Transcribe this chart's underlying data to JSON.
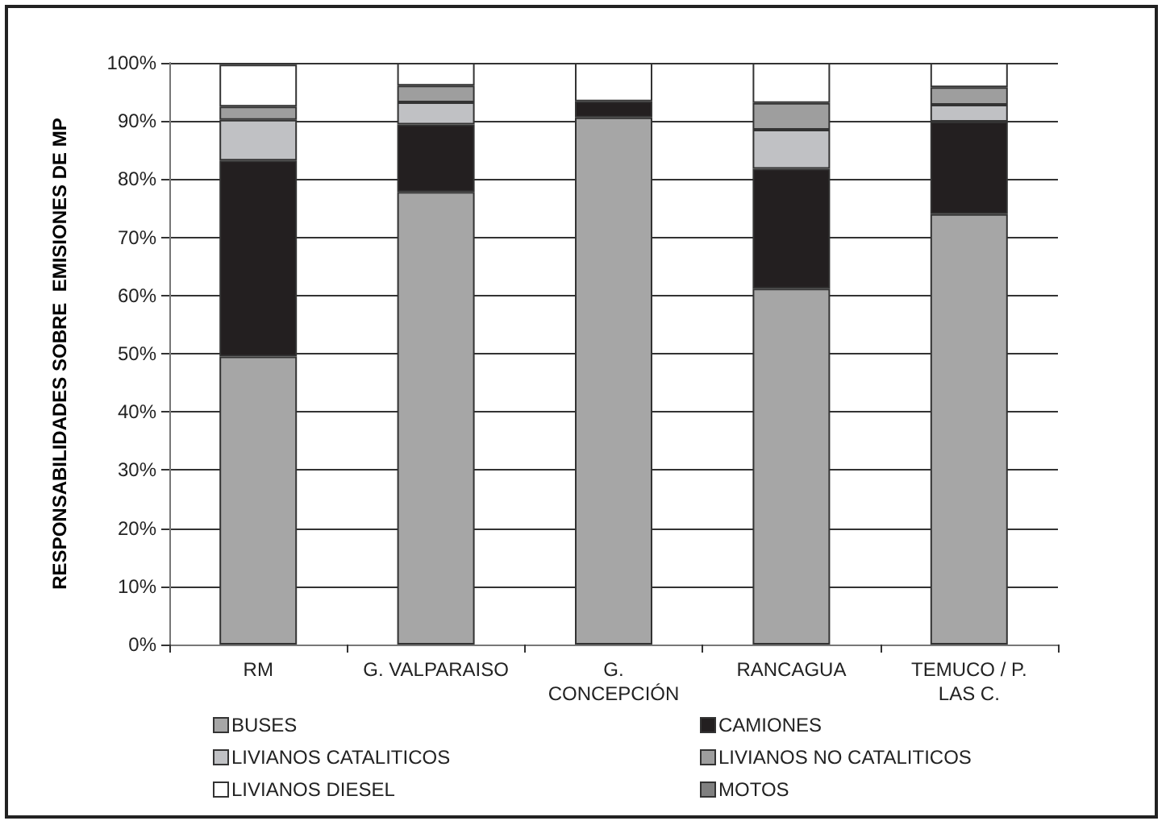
{
  "chart_data": {
    "type": "bar",
    "stacked": true,
    "ylabel": "RESPONSABILIDADES SOBRE  EMISIONES DE MP",
    "categories": [
      "RM",
      "G. VALPARAISO",
      "G.\nCONCEPCIÓN",
      "RANCAGUA",
      "TEMUCO / P.\nLAS C."
    ],
    "series": [
      {
        "name": "BUSES",
        "color": "#a6a6a6",
        "values": [
          49.5,
          77.8,
          90.6,
          61.2,
          74.0
        ]
      },
      {
        "name": "CAMIONES",
        "color": "#231f20",
        "values": [
          33.7,
          11.6,
          2.8,
          20.6,
          15.9
        ]
      },
      {
        "name": "LIVIANOS CATALITICOS",
        "color": "#c0c1c4",
        "values": [
          7.0,
          3.8,
          0,
          6.7,
          2.9
        ]
      },
      {
        "name": "LIVIANOS NO CATALITICOS",
        "color": "#9e9e9e",
        "values": [
          2.3,
          2.9,
          0,
          4.6,
          3.0
        ]
      },
      {
        "name": "LIVIANOS DIESEL",
        "color": "#ffffff",
        "values": [
          7.2,
          3.9,
          6.6,
          6.9,
          4.2
        ]
      },
      {
        "name": "MOTOS",
        "color": "#808080",
        "values": [
          0.3,
          0,
          0,
          0,
          0
        ]
      }
    ],
    "ylim": [
      0,
      100
    ],
    "yticks": [
      {
        "value": 0,
        "label": "0%"
      },
      {
        "value": 10,
        "label": "10%"
      },
      {
        "value": 20,
        "label": "20%"
      },
      {
        "value": 30,
        "label": "30%"
      },
      {
        "value": 40,
        "label": "40%"
      },
      {
        "value": 50,
        "label": "50%"
      },
      {
        "value": 60,
        "label": "60%"
      },
      {
        "value": 70,
        "label": "70%"
      },
      {
        "value": 80,
        "label": "80%"
      },
      {
        "value": 90,
        "label": "90%"
      },
      {
        "value": 100,
        "label": "100%"
      }
    ],
    "grid": "y",
    "legend": "bottom"
  }
}
